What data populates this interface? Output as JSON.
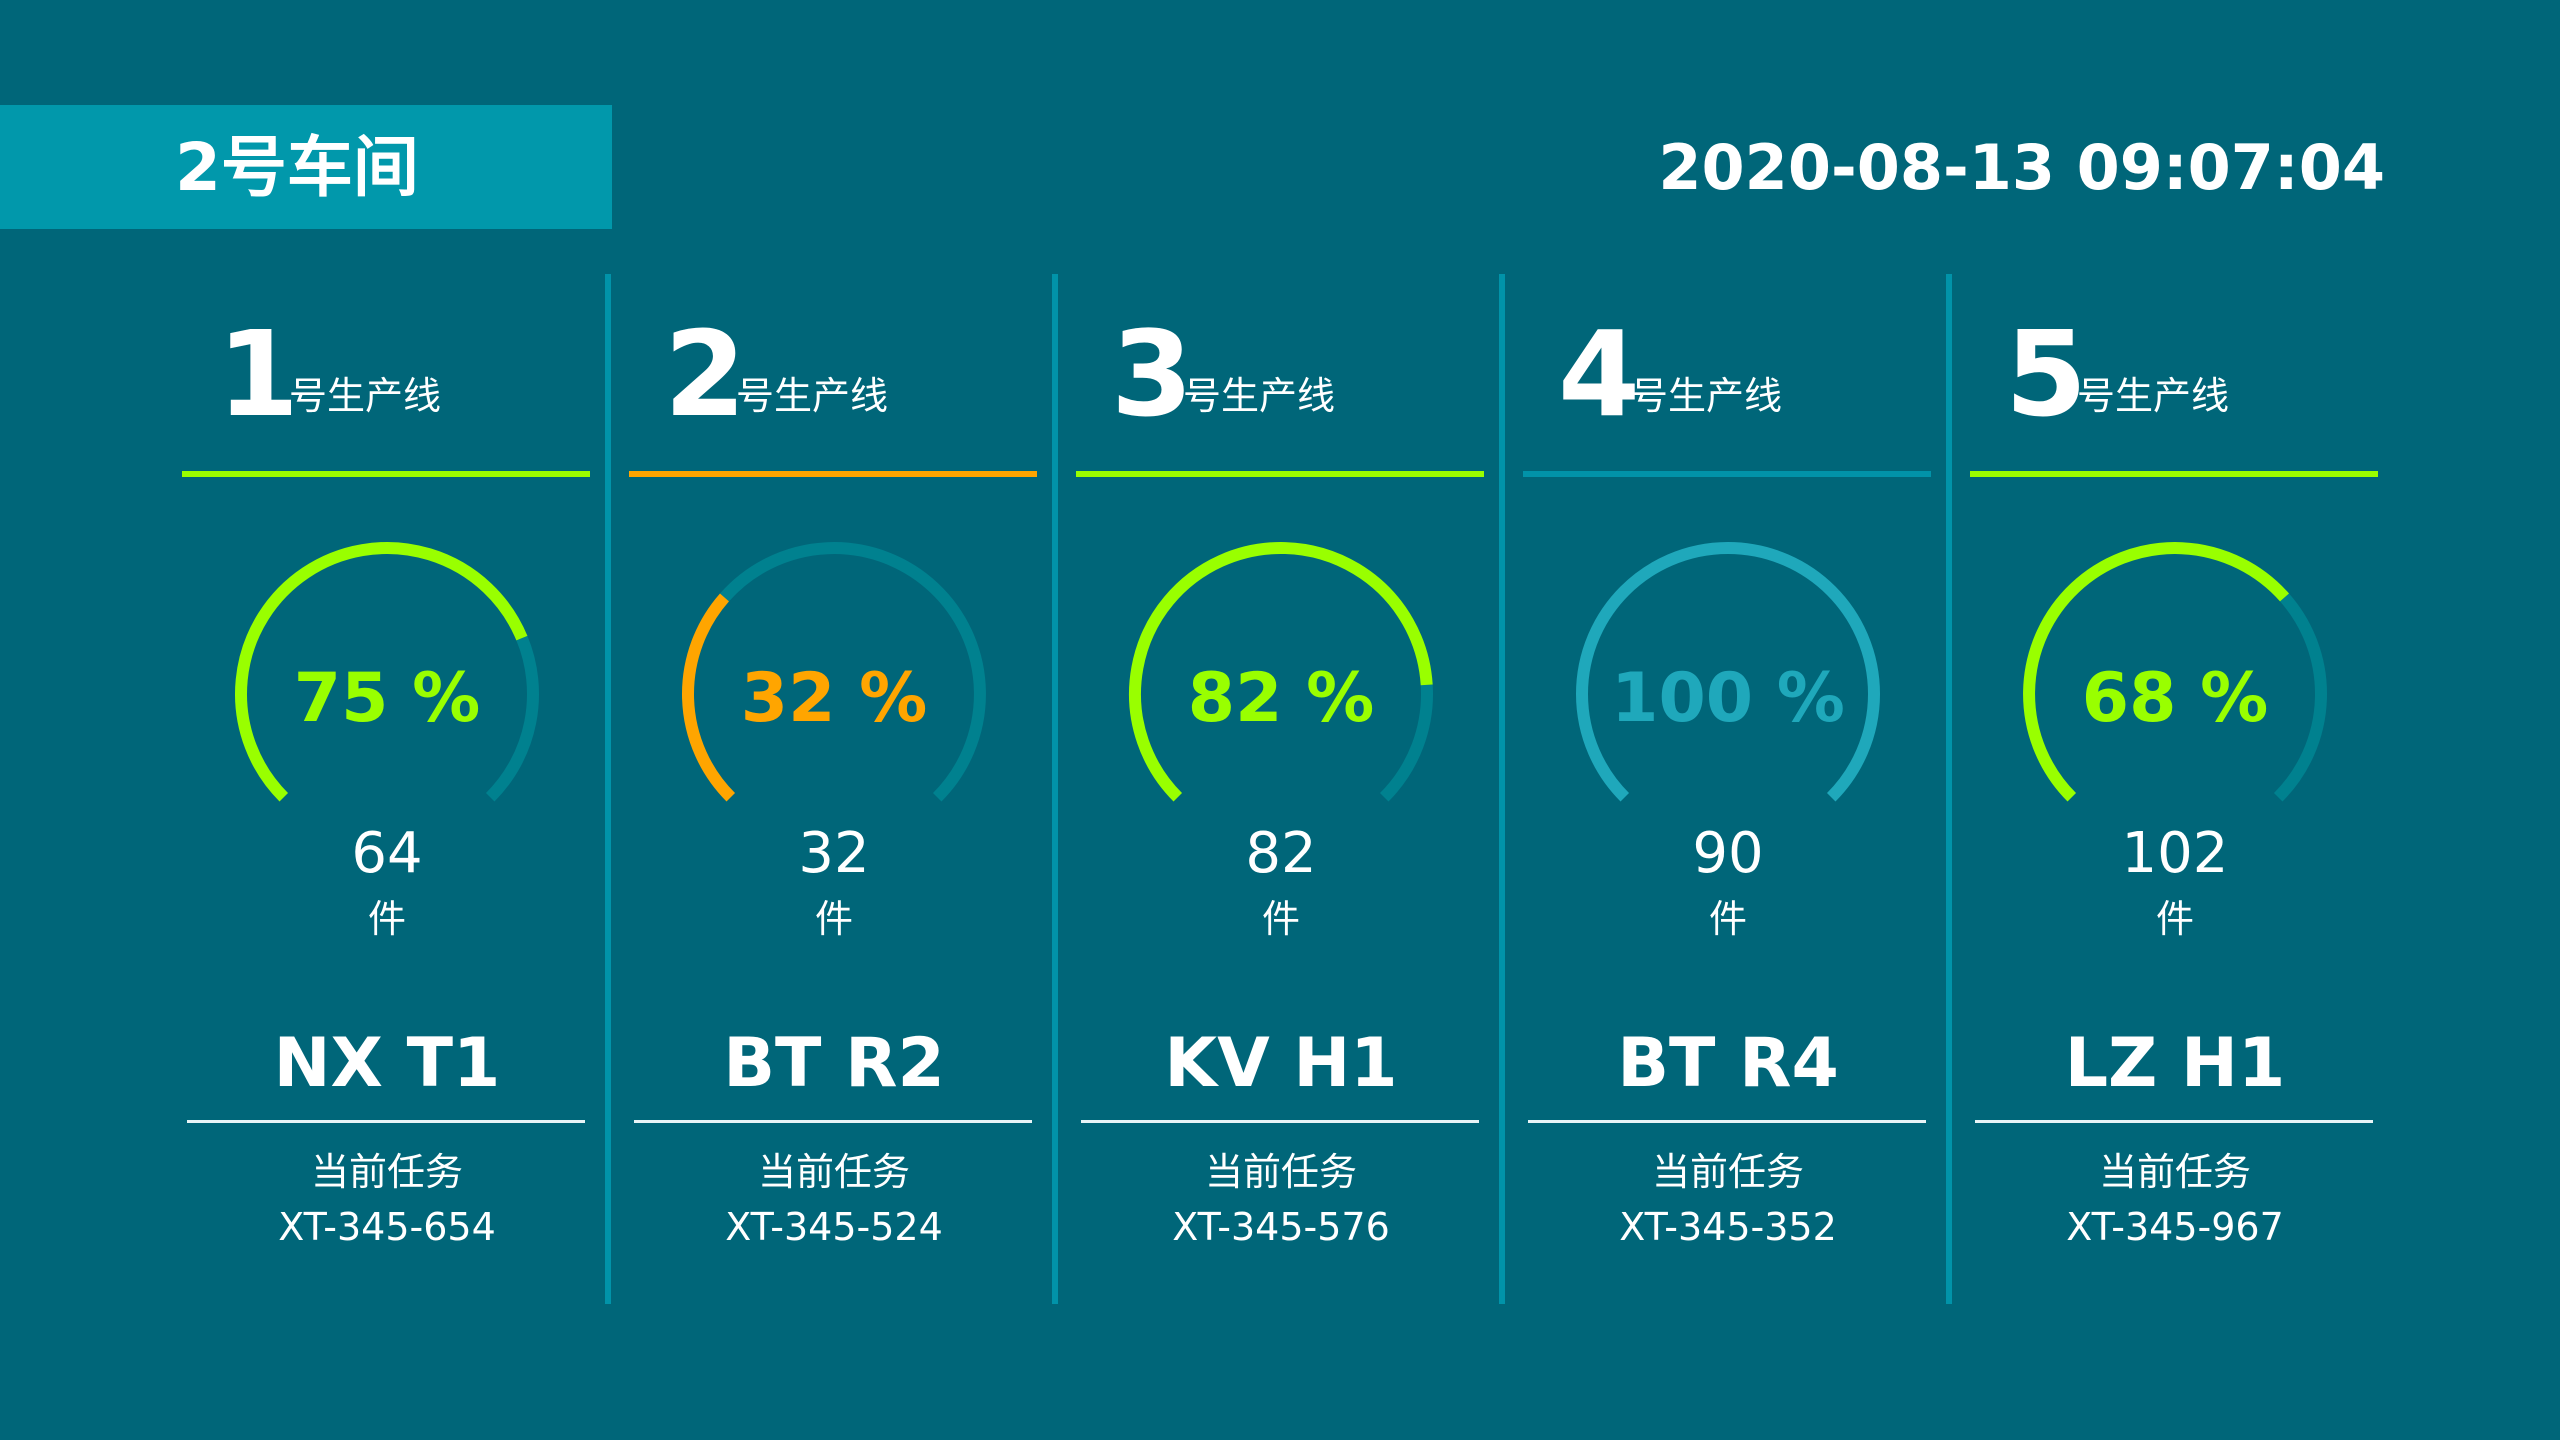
{
  "header": {
    "workshop": "2号车间",
    "datetime": "2020-08-13 09:07:04"
  },
  "colors": {
    "background": "#006679",
    "banner": "#0198ab",
    "divider": "#0193a9",
    "track": "#00818f",
    "green": "#99ff00",
    "orange": "#ffa500",
    "teal": "#1fa8bb"
  },
  "lines": [
    {
      "number": "1",
      "label": "号生产线",
      "percent": 75,
      "percent_text": "75 %",
      "count": "64",
      "unit": "件",
      "product": "NX T1",
      "task_label": "当前任务",
      "task_code": "XT-345-654",
      "accent": "#99ff00",
      "underline": "#99ff00"
    },
    {
      "number": "2",
      "label": "号生产线",
      "percent": 32,
      "percent_text": "32 %",
      "count": "32",
      "unit": "件",
      "product": "BT R2",
      "task_label": "当前任务",
      "task_code": "XT-345-524",
      "accent": "#ffa500",
      "underline": "#ffa500"
    },
    {
      "number": "3",
      "label": "号生产线",
      "percent": 82,
      "percent_text": "82 %",
      "count": "82",
      "unit": "件",
      "product": "KV H1",
      "task_label": "当前任务",
      "task_code": "XT-345-576",
      "accent": "#99ff00",
      "underline": "#99ff00"
    },
    {
      "number": "4",
      "label": "号生产线",
      "percent": 100,
      "percent_text": "100 %",
      "count": "90",
      "unit": "件",
      "product": "BT R4",
      "task_label": "当前任务",
      "task_code": "XT-345-352",
      "accent": "#1fa8bb",
      "underline": "#0193a9"
    },
    {
      "number": "5",
      "label": "号生产线",
      "percent": 68,
      "percent_text": "68 %",
      "count": "102",
      "unit": "件",
      "product": "LZ H1",
      "task_label": "当前任务",
      "task_code": "XT-345-967",
      "accent": "#99ff00",
      "underline": "#99ff00"
    }
  ]
}
